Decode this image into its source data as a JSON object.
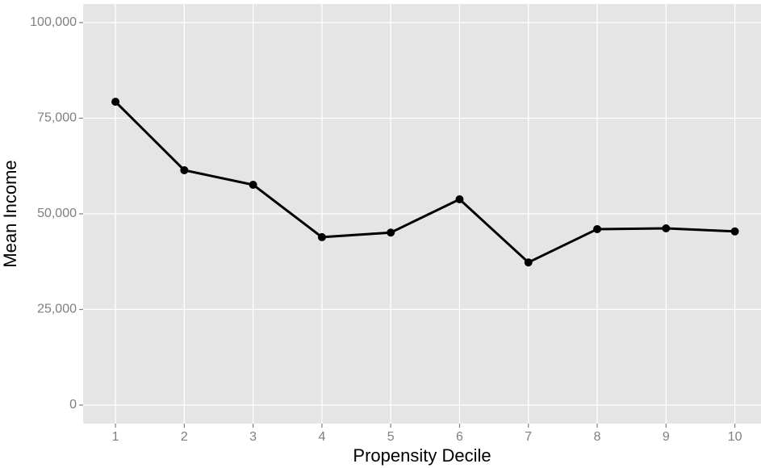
{
  "chart_data": {
    "type": "line",
    "x_label": "Propensity Decile",
    "y_label": "Mean Income",
    "x": [
      1,
      2,
      3,
      4,
      5,
      6,
      7,
      8,
      9,
      10
    ],
    "series": [
      {
        "name": "Mean Income",
        "color": "#000000",
        "values": [
          79300,
          61400,
          57600,
          43900,
          45100,
          53800,
          37300,
          46000,
          46200,
          45400
        ]
      }
    ],
    "xlim": [
      0.53,
      10.38
    ],
    "xticks": [
      1,
      2,
      3,
      4,
      5,
      6,
      7,
      8,
      9,
      10
    ],
    "ylim": [
      -4850,
      104850
    ],
    "yticks": [
      0,
      {
        "value": 25000,
        "label": "25,000"
      },
      {
        "value": 50000,
        "label": "50,000"
      },
      {
        "value": 75000,
        "label": "75,000"
      },
      {
        "value": 100000,
        "label": "100,000"
      }
    ],
    "grid": true
  }
}
